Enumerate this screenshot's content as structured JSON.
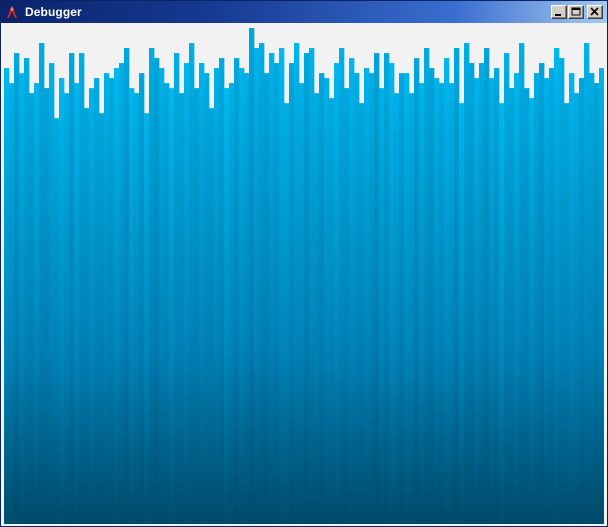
{
  "window": {
    "title": "Debugger",
    "app_icon": "red-a-logo-icon",
    "controls": [
      {
        "name": "minimize-icon"
      },
      {
        "name": "maximize-icon"
      },
      {
        "name": "close-icon"
      }
    ]
  },
  "colors": {
    "titlebar_start": "#0a246a",
    "titlebar_end": "#a6caf0",
    "client_background": "#f2f2f2",
    "bar_light": "#00b8f0",
    "bar_mid": "#0086bc",
    "bar_dark": "#004c6c"
  },
  "bars": {
    "levels": [
      0.91,
      0.88,
      0.94,
      0.9,
      0.93,
      0.86,
      0.88,
      0.96,
      0.87,
      0.92,
      0.81,
      0.89,
      0.86,
      0.94,
      0.88,
      0.94,
      0.83,
      0.87,
      0.89,
      0.82,
      0.9,
      0.89,
      0.91,
      0.92,
      0.95,
      0.87,
      0.86,
      0.9,
      0.82,
      0.95,
      0.93,
      0.91,
      0.88,
      0.87,
      0.94,
      0.86,
      0.92,
      0.96,
      0.87,
      0.92,
      0.9,
      0.83,
      0.91,
      0.93,
      0.87,
      0.88,
      0.93,
      0.91,
      0.9,
      0.99,
      0.95,
      0.96,
      0.9,
      0.94,
      0.92,
      0.95,
      0.84,
      0.92,
      0.96,
      0.88,
      0.94,
      0.95,
      0.86,
      0.9,
      0.89,
      0.85,
      0.92,
      0.95,
      0.87,
      0.93,
      0.9,
      0.84,
      0.91,
      0.9,
      0.94,
      0.87,
      0.94,
      0.92,
      0.86,
      0.9,
      0.9,
      0.86,
      0.93,
      0.88,
      0.95,
      0.91,
      0.89,
      0.88,
      0.93,
      0.88,
      0.95,
      0.84,
      0.96,
      0.92,
      0.89,
      0.92,
      0.95,
      0.89,
      0.91,
      0.84,
      0.94,
      0.87,
      0.9,
      0.96,
      0.87,
      0.85,
      0.9,
      0.92,
      0.89,
      0.91,
      0.95,
      0.93,
      0.84,
      0.9,
      0.86,
      0.89,
      0.96,
      0.9,
      0.88,
      0.91
    ]
  }
}
